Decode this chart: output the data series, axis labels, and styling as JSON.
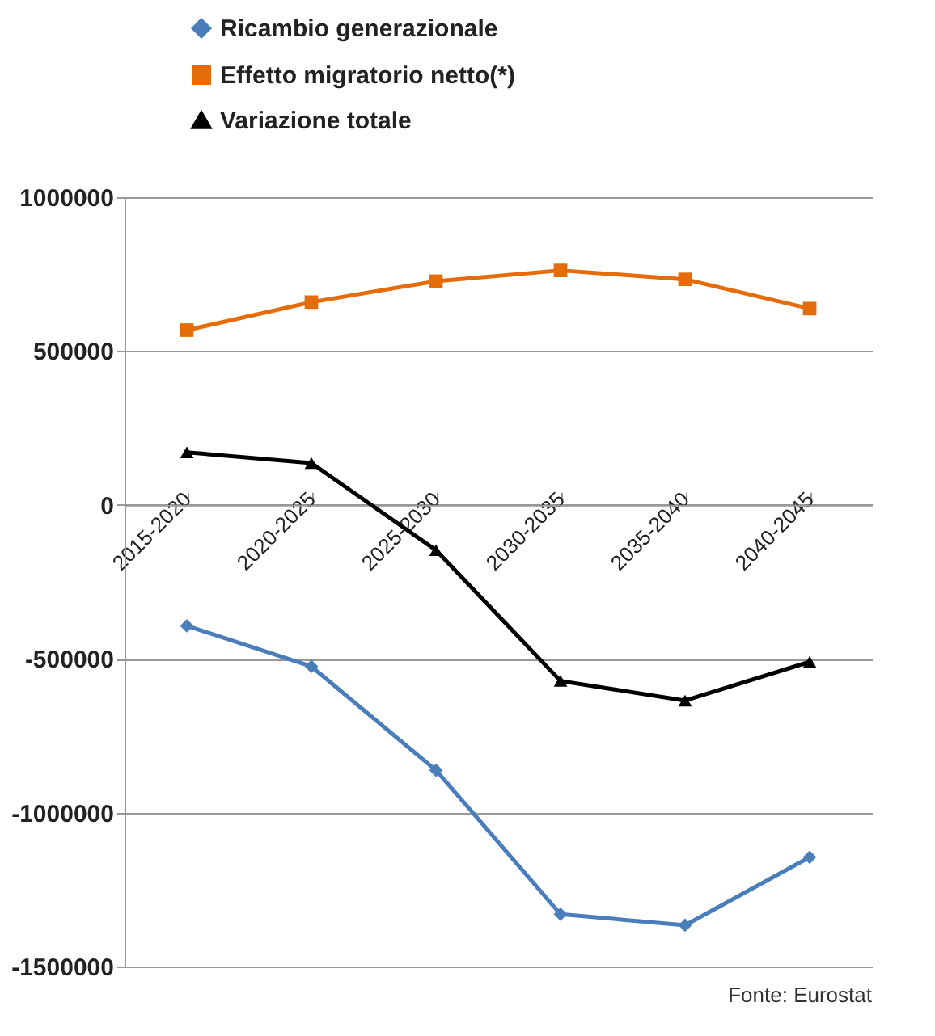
{
  "chart_data": {
    "type": "line",
    "categories": [
      "2015-2020",
      "2020-2025",
      "2025-2030",
      "2030-2035",
      "2035-2040",
      "2040-2045"
    ],
    "series": [
      {
        "name": "Ricambio generazionale",
        "color": "#4a7ebb",
        "marker": "diamond",
        "values": [
          -393000,
          -525000,
          -862000,
          -1330000,
          -1366000,
          -1145000
        ]
      },
      {
        "name": "Effetto migratorio netto(*)",
        "color": "#e46c0a",
        "marker": "square",
        "values": [
          568000,
          659000,
          727000,
          762000,
          733000,
          638000
        ]
      },
      {
        "name": "Variazione totale",
        "color": "#000000",
        "marker": "triangle",
        "values": [
          171000,
          136000,
          -147000,
          -572000,
          -636000,
          -510000
        ]
      }
    ],
    "ylim": [
      -1500000,
      1000000
    ],
    "yticks": [
      -1500000,
      -1000000,
      -500000,
      0,
      500000,
      1000000
    ],
    "grid": "y",
    "legend": "top",
    "annotations": [
      "Fonte: Eurostat"
    ]
  }
}
